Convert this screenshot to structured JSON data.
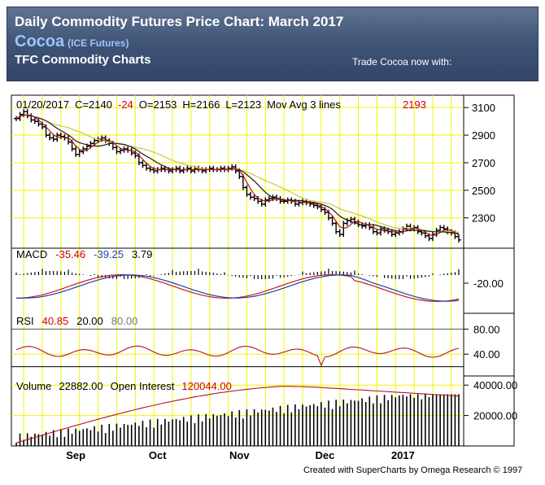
{
  "banner": {
    "title": "Daily Commodity Futures Price Chart: March 2017",
    "commodity": "Cocoa",
    "exchange": "(ICE Futures)",
    "subtitle": "TFC Commodity Charts",
    "trade_text": "Trade Cocoa now with:"
  },
  "credit": "Created with SuperCharts by Omega Research © 1997",
  "chart_data": [
    {
      "type": "ohlc",
      "panel": "price",
      "header": {
        "date": "01/20/2017",
        "close": "C=2140",
        "change": "-24",
        "open": "O=2153",
        "high": "H=2166",
        "low": "L=2123",
        "label": "Mov Avg 3 lines",
        "ma_value": "2193"
      },
      "ylim": [
        2080,
        3160
      ],
      "ticks": [
        "3100",
        "2900",
        "2700",
        "2500",
        "2300"
      ],
      "tick_values": [
        3100,
        2900,
        2700,
        2500,
        2300
      ],
      "x_labels": [
        "Sep",
        "Oct",
        "Nov",
        "Dec",
        "2017"
      ],
      "x_label_index": [
        16,
        38,
        60,
        83,
        104
      ],
      "closes": [
        3020,
        3050,
        3070,
        3040,
        3010,
        3000,
        2980,
        2960,
        2900,
        2880,
        2870,
        2900,
        2890,
        2880,
        2850,
        2800,
        2760,
        2780,
        2800,
        2820,
        2840,
        2860,
        2870,
        2880,
        2860,
        2840,
        2810,
        2780,
        2790,
        2800,
        2790,
        2770,
        2750,
        2700,
        2680,
        2660,
        2650,
        2640,
        2650,
        2660,
        2650,
        2640,
        2650,
        2660,
        2640,
        2650,
        2660,
        2640,
        2660,
        2650,
        2640,
        2650,
        2660,
        2650,
        2650,
        2660,
        2650,
        2660,
        2670,
        2640,
        2600,
        2520,
        2470,
        2450,
        2440,
        2420,
        2400,
        2430,
        2440,
        2450,
        2440,
        2420,
        2420,
        2430,
        2420,
        2400,
        2410,
        2420,
        2410,
        2400,
        2390,
        2380,
        2360,
        2340,
        2300,
        2260,
        2200,
        2180,
        2260,
        2280,
        2290,
        2270,
        2250,
        2240,
        2250,
        2230,
        2200,
        2190,
        2220,
        2210,
        2200,
        2180,
        2190,
        2200,
        2220,
        2240,
        2220,
        2230,
        2200,
        2190,
        2170,
        2150,
        2180,
        2210,
        2230,
        2220,
        2200,
        2190,
        2164,
        2140
      ],
      "moving_averages": [
        {
          "color": "#c9c93a"
        },
        {
          "color": "#1a1a1a"
        },
        {
          "color": "#b01818"
        }
      ]
    },
    {
      "type": "macd",
      "panel": "macd",
      "label": "MACD",
      "macd": "-35.46",
      "signal": "-39.25",
      "histogram": "3.79",
      "ticks": [
        "-20.00"
      ],
      "tick_values": [
        -20
      ]
    },
    {
      "type": "line",
      "panel": "rsi",
      "label": "RSI",
      "rsi": "40.85",
      "level_low": "20.00",
      "level_high": "80.00",
      "ticks": [
        "80.00",
        "40.00"
      ],
      "tick_values": [
        80,
        40
      ]
    },
    {
      "type": "bar",
      "panel": "volume",
      "label_volume": "Volume",
      "volume": "22882.00",
      "label_oi": "Open Interest",
      "open_interest": "120044.00",
      "ticks": [
        "40000.00",
        "20000.00"
      ],
      "tick_values": [
        40000,
        20000
      ]
    }
  ],
  "colors": {
    "grid": "#f4f400",
    "up": "#000000",
    "red_value": "#cc0000",
    "blue_value": "#1f3fa8",
    "gray_value": "#777777"
  }
}
